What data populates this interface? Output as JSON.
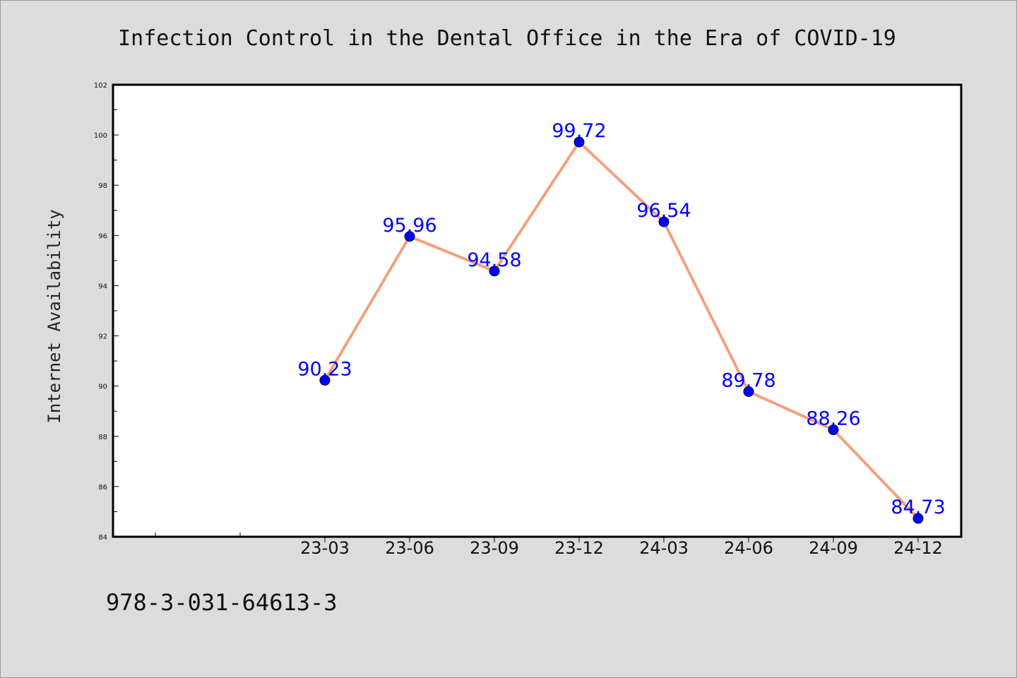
{
  "chart_data": {
    "type": "line",
    "title": "Infection Control in the Dental Office in the Era of COVID-19",
    "xlabel": "",
    "ylabel": "Internet Availability",
    "categories": [
      "23-03",
      "23-06",
      "23-09",
      "23-12",
      "24-03",
      "24-06",
      "24-09",
      "24-12"
    ],
    "series": [
      {
        "values": [
          90.23,
          95.96,
          94.58,
          99.72,
          96.54,
          89.78,
          88.26,
          84.73
        ]
      }
    ],
    "data_labels": [
      "90.23",
      "95.96",
      "94.58",
      "99.72",
      "96.54",
      "89.78",
      "88.26",
      "84.73"
    ],
    "ylim": [
      84,
      102
    ],
    "yticks": [
      "84",
      "86",
      "88",
      "90",
      "92",
      "94",
      "96",
      "98",
      "100",
      "102"
    ],
    "grid": false,
    "line_color": "#f4a07c",
    "marker_color": "#0000ff",
    "label_color": "#0000ff",
    "background_color": "#dcdcdc",
    "plot_background_color": "#ffffff"
  },
  "footer": {
    "isbn": "978-3-031-64613-3"
  }
}
